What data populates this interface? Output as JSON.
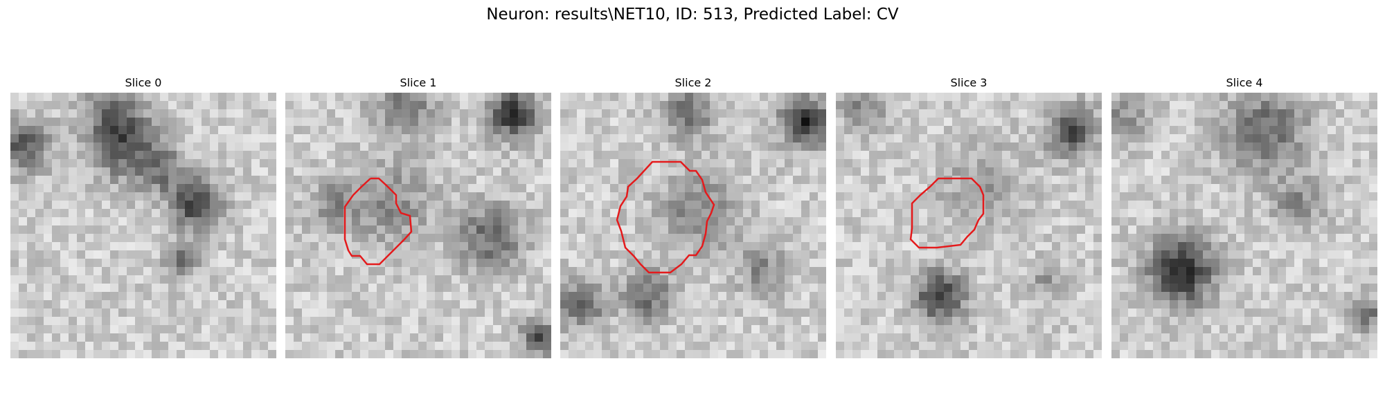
{
  "figure": {
    "title": "Neuron: results\\NET10, ID: 513, Predicted Label: CV"
  },
  "panels": [
    {
      "title": "Slice 0",
      "has_contour": false
    },
    {
      "title": "Slice 1",
      "has_contour": true
    },
    {
      "title": "Slice 2",
      "has_contour": true
    },
    {
      "title": "Slice 3",
      "has_contour": true
    },
    {
      "title": "Slice 4",
      "has_contour": false
    }
  ],
  "colors": {
    "contour": "#e41a1c",
    "background": "#ffffff"
  },
  "colormap": "gray"
}
